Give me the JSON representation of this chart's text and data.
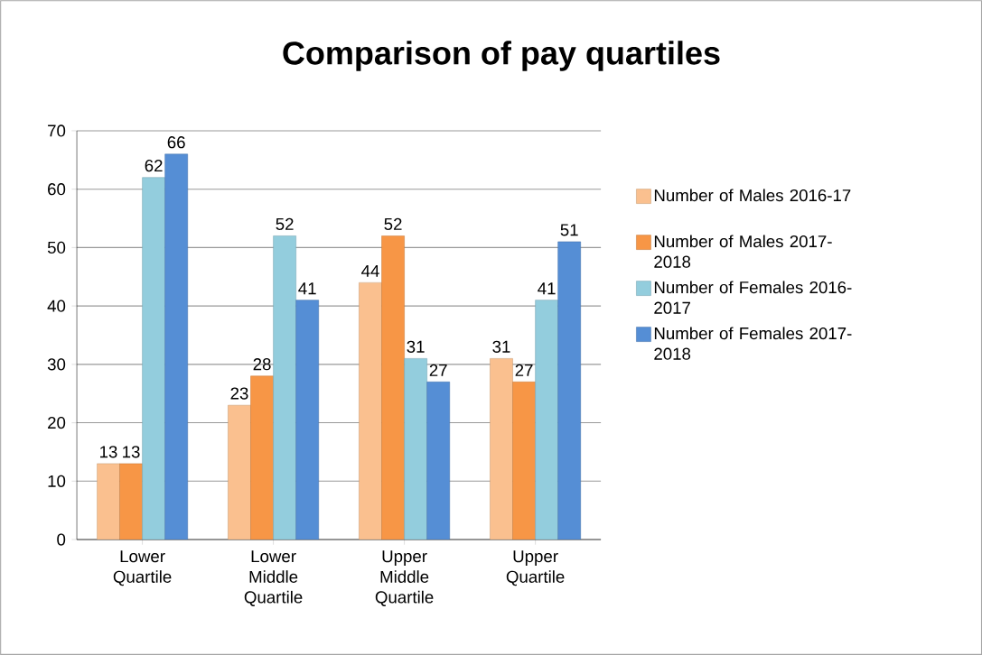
{
  "chart_data": {
    "type": "bar",
    "title": "Comparison of pay quartiles",
    "categories": [
      "Lower Quartile",
      "Lower Middle Quartile",
      "Upper Middle Quartile",
      "Upper Quartile"
    ],
    "series": [
      {
        "name": "Number of Males 2016-17",
        "color": "#fac08f",
        "values": [
          13,
          23,
          44,
          31
        ]
      },
      {
        "name": "Number of Males 2017-2018",
        "color": "#f79646",
        "values": [
          13,
          28,
          52,
          27
        ]
      },
      {
        "name": "Number of Females 2016-2017",
        "color": "#93cddd",
        "values": [
          62,
          52,
          31,
          41
        ]
      },
      {
        "name": "Number of Females 2017-2018",
        "color": "#558ed5",
        "values": [
          66,
          41,
          27,
          51
        ]
      }
    ],
    "ylim": [
      0,
      70
    ],
    "yticks": [
      0,
      10,
      20,
      30,
      40,
      50,
      60,
      70
    ],
    "grid": "y",
    "legend": "right",
    "data_labels": true
  }
}
